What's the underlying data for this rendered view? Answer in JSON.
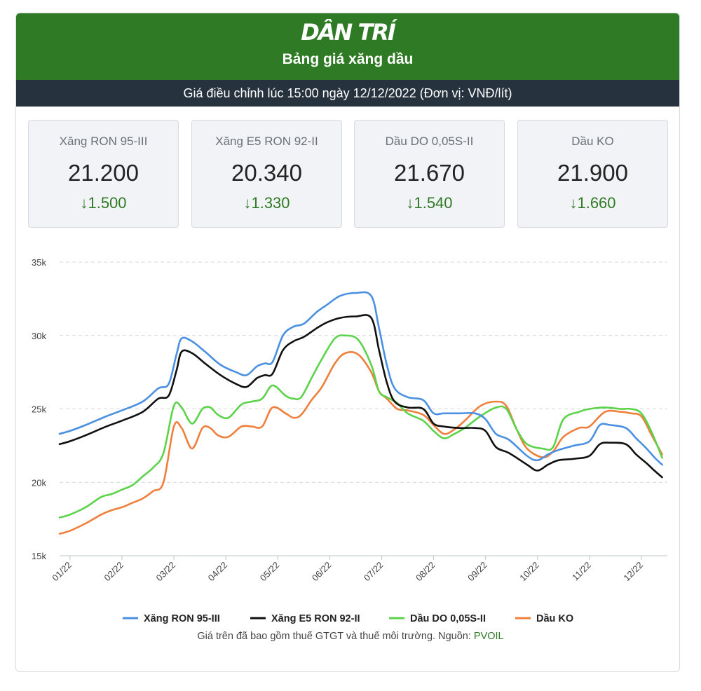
{
  "header": {
    "logo": "DÂN TRÍ",
    "title": "Bảng giá xăng dầu",
    "subtitle": "Giá điều chỉnh lúc 15:00 ngày 12/12/2022 (Đơn vị: VNĐ/lít)"
  },
  "tiles": [
    {
      "name": "Xăng RON 95-III",
      "price": "21.200",
      "change": "1.500"
    },
    {
      "name": "Xăng E5 RON 92-II",
      "price": "20.340",
      "change": "1.330"
    },
    {
      "name": "Dầu DO 0,05S-II",
      "price": "21.670",
      "change": "1.540"
    },
    {
      "name": "Dầu KO",
      "price": "21.900",
      "change": "1.660"
    }
  ],
  "colors": {
    "brand": "#2f7a24",
    "down": "#2f7a24"
  },
  "icons": {
    "change_direction": "arrow-down-icon"
  },
  "footnote": {
    "text": "Giá trên đã bao gồm thuế GTGT và thuế môi trường. Nguồn: ",
    "source": "PVOIL"
  },
  "chart_data": {
    "type": "line",
    "title": "",
    "xlabel": "",
    "ylabel": "",
    "ylim": [
      15000,
      35000
    ],
    "yticks": [
      15000,
      20000,
      25000,
      30000,
      35000
    ],
    "ytick_labels": [
      "15k",
      "20k",
      "25k",
      "30k",
      "35k"
    ],
    "xticks": [
      1,
      2,
      3,
      4,
      5,
      6,
      7,
      8,
      9,
      10,
      11,
      12
    ],
    "xtick_labels": [
      "01/22",
      "02/22",
      "03/22",
      "04/22",
      "05/22",
      "06/22",
      "07/22",
      "08/22",
      "09/22",
      "10/22",
      "11/22",
      "12/22"
    ],
    "xlim": [
      0.8,
      12.5
    ],
    "grid": "horizontal dashed",
    "legend": "bottom",
    "series": [
      {
        "name": "Xăng RON 95-III",
        "color": "#4a90e2",
        "x": [
          0.8,
          1.0,
          1.3,
          1.7,
          2.0,
          2.4,
          2.7,
          2.9,
          3.05,
          3.15,
          3.35,
          3.6,
          3.9,
          4.2,
          4.4,
          4.6,
          4.75,
          4.9,
          5.1,
          5.3,
          5.5,
          5.75,
          5.95,
          6.2,
          6.5,
          6.8,
          6.95,
          7.1,
          7.25,
          7.5,
          7.8,
          8.0,
          8.2,
          8.5,
          8.8,
          9.0,
          9.2,
          9.45,
          9.8,
          10.0,
          10.2,
          10.4,
          10.7,
          11.0,
          11.2,
          11.4,
          11.7,
          11.9,
          12.1,
          12.25,
          12.4
        ],
        "values": [
          23300,
          23500,
          23900,
          24500,
          24900,
          25500,
          26400,
          26700,
          28700,
          29800,
          29600,
          28900,
          28000,
          27500,
          27300,
          27900,
          28100,
          28200,
          30000,
          30600,
          30800,
          31600,
          32100,
          32700,
          32900,
          32700,
          30500,
          28000,
          26400,
          25800,
          25600,
          24700,
          24700,
          24700,
          24700,
          24300,
          23300,
          22900,
          21800,
          21500,
          21900,
          22200,
          22500,
          22800,
          23900,
          23900,
          23700,
          23000,
          22300,
          21700,
          21200
        ]
      },
      {
        "name": "Xăng E5 RON 92-II",
        "color": "#111111",
        "x": [
          0.8,
          1.0,
          1.3,
          1.7,
          2.0,
          2.4,
          2.7,
          2.9,
          3.05,
          3.15,
          3.35,
          3.6,
          3.9,
          4.2,
          4.4,
          4.6,
          4.75,
          4.9,
          5.1,
          5.3,
          5.5,
          5.75,
          5.95,
          6.2,
          6.5,
          6.8,
          6.95,
          7.1,
          7.25,
          7.5,
          7.8,
          8.0,
          8.2,
          8.5,
          8.8,
          9.0,
          9.2,
          9.45,
          9.8,
          10.0,
          10.2,
          10.4,
          10.7,
          11.0,
          11.2,
          11.4,
          11.7,
          11.9,
          12.1,
          12.25,
          12.4
        ],
        "values": [
          22600,
          22800,
          23200,
          23800,
          24200,
          24800,
          25700,
          25900,
          27600,
          28900,
          28800,
          28100,
          27300,
          26700,
          26500,
          27100,
          27300,
          27400,
          29000,
          29600,
          29900,
          30500,
          30900,
          31200,
          31300,
          31200,
          29000,
          26800,
          25500,
          25100,
          25000,
          24000,
          23800,
          23700,
          23700,
          23500,
          22400,
          22000,
          21200,
          20800,
          21200,
          21500,
          21600,
          21800,
          22600,
          22700,
          22600,
          21900,
          21300,
          20800,
          20340
        ]
      },
      {
        "name": "Dầu DO 0,05S-II",
        "color": "#5bd34a",
        "x": [
          0.8,
          1.0,
          1.3,
          1.6,
          1.8,
          2.0,
          2.2,
          2.4,
          2.6,
          2.8,
          3.0,
          3.15,
          3.35,
          3.55,
          3.7,
          3.85,
          4.05,
          4.3,
          4.5,
          4.7,
          4.9,
          5.15,
          5.3,
          5.45,
          5.65,
          5.85,
          6.1,
          6.3,
          6.55,
          6.8,
          6.95,
          7.1,
          7.3,
          7.5,
          7.8,
          8.0,
          8.2,
          8.4,
          8.6,
          8.9,
          9.2,
          9.4,
          9.6,
          9.8,
          10.1,
          10.3,
          10.5,
          10.8,
          11.0,
          11.3,
          11.6,
          11.8,
          12.0,
          12.2,
          12.4
        ],
        "values": [
          17600,
          17800,
          18300,
          19000,
          19200,
          19500,
          19800,
          20400,
          21000,
          22000,
          25200,
          25100,
          24000,
          25000,
          25100,
          24600,
          24400,
          25300,
          25500,
          25700,
          26600,
          25900,
          25700,
          25800,
          27100,
          28400,
          29800,
          30000,
          29700,
          28000,
          26200,
          25800,
          25400,
          24700,
          24200,
          23500,
          23000,
          23300,
          23700,
          24500,
          25100,
          25000,
          23600,
          22600,
          22300,
          22400,
          24300,
          24800,
          25000,
          25100,
          25000,
          25000,
          24700,
          23400,
          21670
        ]
      },
      {
        "name": "Dầu KO",
        "color": "#f07f3c",
        "x": [
          0.8,
          1.0,
          1.3,
          1.6,
          1.8,
          2.0,
          2.2,
          2.4,
          2.6,
          2.8,
          3.0,
          3.15,
          3.35,
          3.55,
          3.7,
          3.85,
          4.05,
          4.3,
          4.5,
          4.7,
          4.9,
          5.15,
          5.3,
          5.45,
          5.65,
          5.85,
          6.1,
          6.3,
          6.55,
          6.8,
          6.95,
          7.1,
          7.3,
          7.5,
          7.8,
          8.0,
          8.2,
          8.4,
          8.6,
          8.9,
          9.2,
          9.4,
          9.6,
          9.8,
          10.1,
          10.3,
          10.5,
          10.8,
          11.0,
          11.3,
          11.6,
          11.8,
          12.0,
          12.2,
          12.4
        ],
        "values": [
          16500,
          16700,
          17200,
          17800,
          18100,
          18300,
          18600,
          18900,
          19400,
          20000,
          23800,
          23700,
          22300,
          23700,
          23700,
          23200,
          23100,
          23800,
          23800,
          23800,
          25100,
          24700,
          24400,
          24600,
          25600,
          26500,
          28100,
          28800,
          28700,
          27500,
          26200,
          25700,
          25000,
          24900,
          24600,
          23900,
          23300,
          23600,
          24200,
          25200,
          25500,
          25200,
          23600,
          22300,
          21700,
          22100,
          23100,
          23700,
          23800,
          24800,
          24800,
          24700,
          24500,
          23200,
          21900
        ]
      }
    ]
  }
}
